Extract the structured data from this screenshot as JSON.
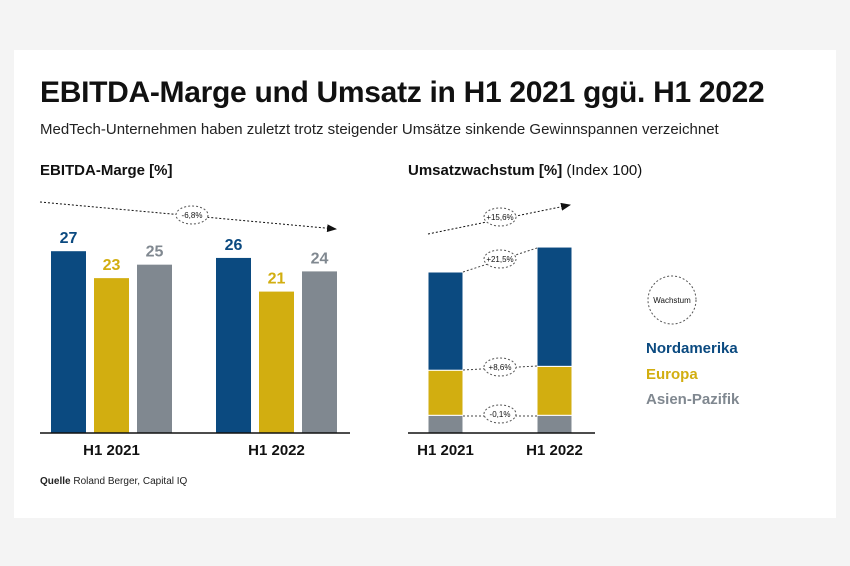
{
  "header": {
    "title": "EBITDA-Marge und Umsatz in H1 2021 ggü. H1 2022",
    "subtitle": "MedTech-Unternehmen haben zuletzt trotz steigender Umsätze sinkende Gewinnspannen verzeichnet"
  },
  "colors": {
    "nordamerika": "#0b4a80",
    "europa": "#d2ae10",
    "asien": "#808890",
    "text": "#111111"
  },
  "chart_data": [
    {
      "type": "bar",
      "title": "EBITDA-Marge [%]",
      "categories": [
        "H1 2021",
        "H1 2022"
      ],
      "series": [
        {
          "name": "Nordamerika",
          "values": [
            27,
            26
          ]
        },
        {
          "name": "Europa",
          "values": [
            23,
            21
          ]
        },
        {
          "name": "Asien-Pazifik",
          "values": [
            25,
            24
          ]
        }
      ],
      "trend_annotation": "-6,8%",
      "ylim": [
        0,
        30
      ]
    },
    {
      "type": "bar",
      "stacked": true,
      "title": "Umsatzwachstum [%]",
      "title_suffix": "(Index 100)",
      "categories": [
        "H1 2021",
        "H1 2022"
      ],
      "series": [
        {
          "name": "Asien-Pazifik",
          "values": [
            11,
            11
          ]
        },
        {
          "name": "Europa",
          "values": [
            28,
            30.4
          ]
        },
        {
          "name": "Nordamerika",
          "values": [
            61,
            74.1
          ]
        }
      ],
      "totals": [
        100,
        115.6
      ],
      "annotations": {
        "total": "+15,6%",
        "nordamerika": "+21,5%",
        "europa": "+8,6%",
        "asien": "-0,1%"
      }
    }
  ],
  "legend": {
    "badge": "Wachstum",
    "items": [
      "Nordamerika",
      "Europa",
      "Asien-Pazifik"
    ]
  },
  "source": {
    "label": "Quelle",
    "text": "Roland Berger, Capital IQ"
  }
}
